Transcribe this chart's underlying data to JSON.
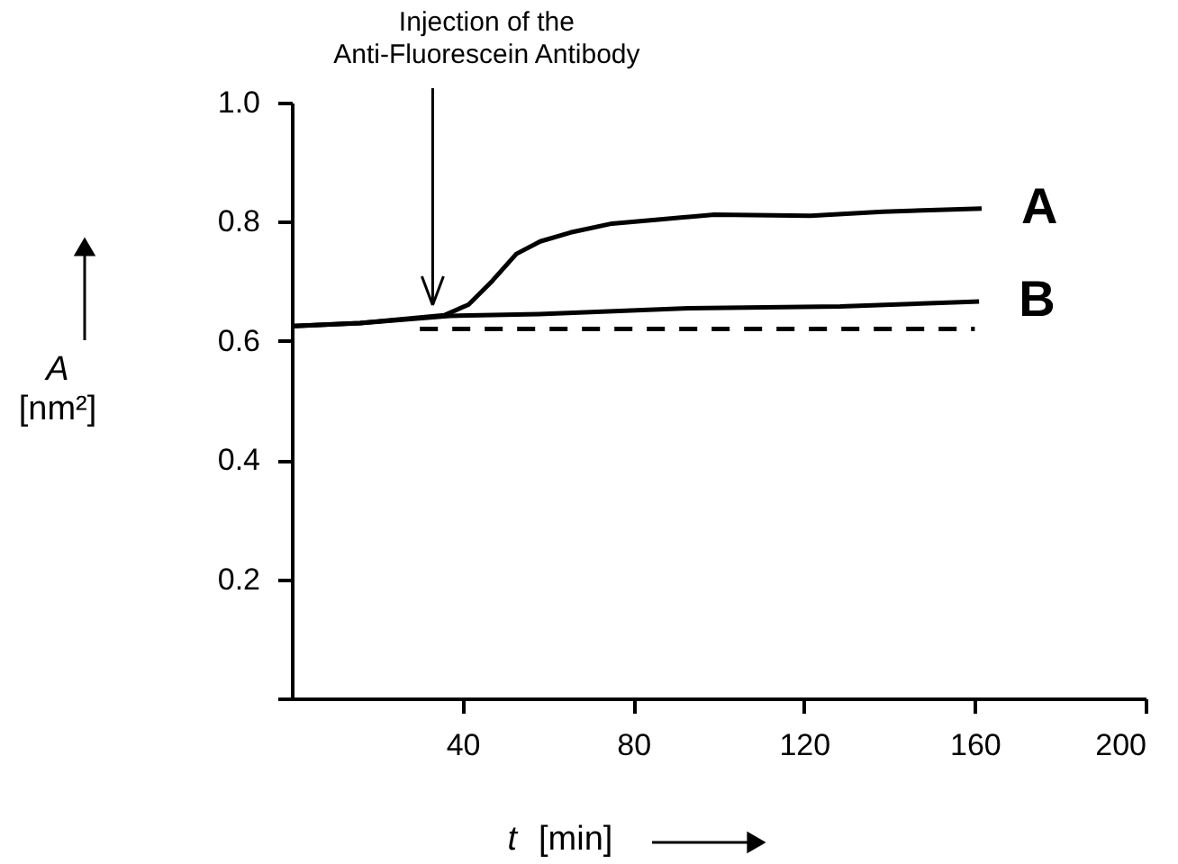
{
  "chart_data": {
    "type": "line",
    "xlabel": "t [min]",
    "ylabel": "A [nm²]",
    "xlim": [
      0,
      200
    ],
    "xticks": [
      40,
      80,
      120,
      160,
      200
    ],
    "ylim": [
      0,
      1.0
    ],
    "yticks": [
      {
        "value": 0,
        "label": null
      },
      0.2,
      0.4,
      0.6,
      0.8,
      {
        "value": 1.0,
        "label": "1.0"
      }
    ],
    "grid": false,
    "marker": "none",
    "series": [
      {
        "name": "A",
        "color": "#000000",
        "line_style": "solid",
        "x": [
          0.5,
          16,
          35.7,
          41.4,
          47,
          52.6,
          58.2,
          65.3,
          75,
          86.4,
          99,
          121.5,
          138.4,
          161.6
        ],
        "values": [
          0.625,
          0.63,
          0.643,
          0.661,
          0.701,
          0.746,
          0.767,
          0.782,
          0.797,
          0.804,
          0.812,
          0.81,
          0.817,
          0.822
        ]
      },
      {
        "name": "B",
        "color": "#000000",
        "line_style": "solid",
        "x": [
          0.5,
          16,
          37,
          58,
          93,
          128.5,
          161
        ],
        "values": [
          0.625,
          0.63,
          0.642,
          0.645,
          0.655,
          0.658,
          0.666
        ]
      },
      {
        "color": "#000000",
        "line_style": "dashed",
        "x": [
          30,
          160
        ],
        "values": [
          0.62,
          0.62
        ]
      }
    ],
    "annotations": [
      {
        "text": "Injection of the\nAnti-Fluorescein Antibody",
        "x": 33,
        "y": 0.66
      }
    ]
  }
}
